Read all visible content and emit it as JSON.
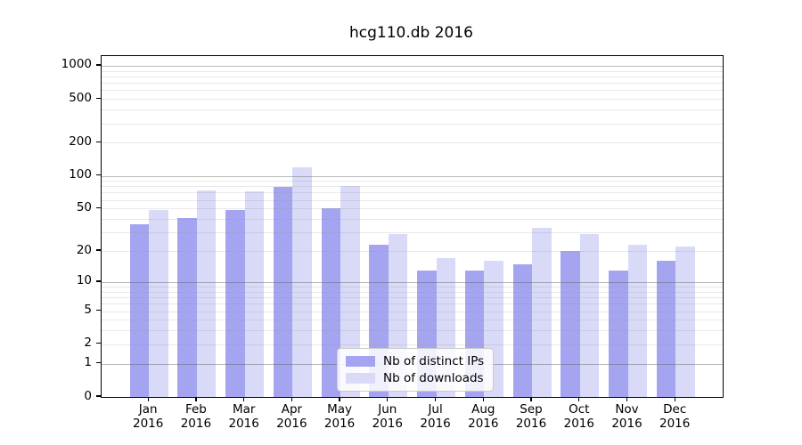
{
  "title": "hcg110.db 2016",
  "chart_data": {
    "type": "bar",
    "categories": [
      "Jan",
      "Feb",
      "Mar",
      "Apr",
      "May",
      "Jun",
      "Jul",
      "Aug",
      "Sep",
      "Oct",
      "Nov",
      "Dec"
    ],
    "year": "2016",
    "series": [
      {
        "name": "Nb of distinct IPs",
        "color": "#a4a4f0",
        "values": [
          36,
          41,
          48,
          79,
          50,
          23,
          13,
          13,
          15,
          20,
          13,
          16
        ]
      },
      {
        "name": "Nb of downloads",
        "color": "#d9d9f8",
        "values": [
          48,
          74,
          72,
          120,
          80,
          29,
          17,
          16,
          33,
          29,
          23,
          22
        ]
      }
    ],
    "yticks": [
      0,
      1,
      2,
      5,
      10,
      20,
      50,
      100,
      200,
      500,
      1000
    ],
    "scale": "log(1+x)",
    "ylim": [
      0,
      1220
    ],
    "xlabel": "",
    "ylabel": "",
    "grid": "on",
    "legend_position": "lower-center"
  }
}
